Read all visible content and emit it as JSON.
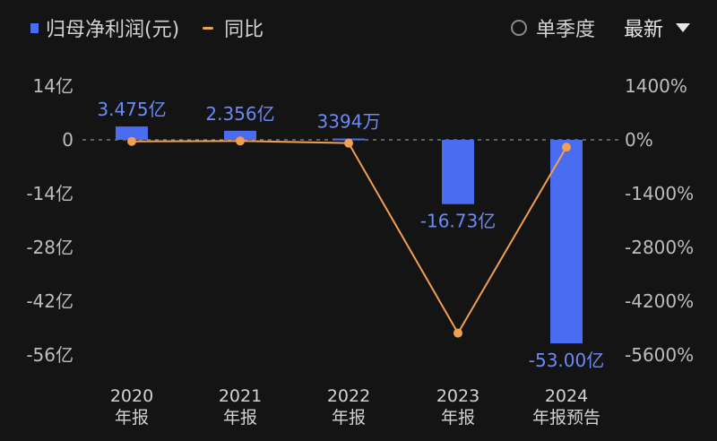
{
  "legend": {
    "bar_label": "归母净利润(元)",
    "line_label": "同比"
  },
  "controls": {
    "quarter_label": "单季度",
    "latest_label": "最新"
  },
  "colors": {
    "bar": "#4a6cf0",
    "line": "#f0a050",
    "axis_text": "#bdbdbd",
    "bar_label": "#6b8af5",
    "grid": "#8a8a8a"
  },
  "chart_data": {
    "type": "bar",
    "categories": [
      [
        "2020",
        "年报"
      ],
      [
        "2021",
        "年报"
      ],
      [
        "2022",
        "年报"
      ],
      [
        "2023",
        "年报"
      ],
      [
        "2024",
        "年报预告"
      ]
    ],
    "ylim_left": [
      -56,
      14
    ],
    "ylim_right": [
      -5600,
      1400
    ],
    "left_ticks": [
      {
        "v": 14,
        "label": "14亿"
      },
      {
        "v": 0,
        "label": "0"
      },
      {
        "v": -14,
        "label": "-14亿"
      },
      {
        "v": -28,
        "label": "-28亿"
      },
      {
        "v": -42,
        "label": "-42亿"
      },
      {
        "v": -56,
        "label": "-56亿"
      }
    ],
    "right_ticks": [
      {
        "v": 1400,
        "label": "1400%"
      },
      {
        "v": 0,
        "label": "0%"
      },
      {
        "v": -1400,
        "label": "-1400%"
      },
      {
        "v": -2800,
        "label": "-2800%"
      },
      {
        "v": -4200,
        "label": "-4200%"
      },
      {
        "v": -5600,
        "label": "-5600%"
      }
    ],
    "series": [
      {
        "name": "归母净利润(元)",
        "kind": "bar",
        "axis": "left",
        "values": [
          3.475,
          2.356,
          0.3394,
          -16.73,
          -53.0
        ],
        "labels": [
          "3.475亿",
          "2.356亿",
          "3394万",
          "-16.73亿",
          "-53.00亿"
        ]
      },
      {
        "name": "同比",
        "kind": "line",
        "axis": "right",
        "values": [
          -40,
          -30,
          -86,
          -5030,
          -190
        ]
      }
    ]
  }
}
